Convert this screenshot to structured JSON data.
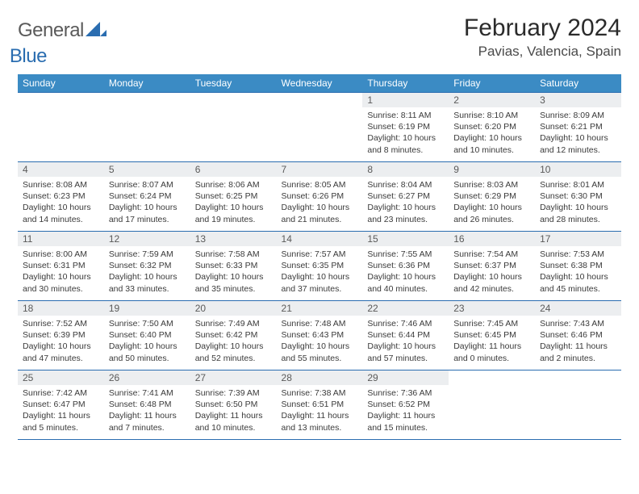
{
  "logo": {
    "text1": "General",
    "text2": "Blue"
  },
  "title": "February 2024",
  "location": "Pavias, Valencia, Spain",
  "colors": {
    "header_bg": "#3b8bc4",
    "header_fg": "#ffffff",
    "row_border": "#2a6db0",
    "daynum_bg": "#eceef0",
    "logo_blue": "#2a6db0"
  },
  "daysOfWeek": [
    "Sunday",
    "Monday",
    "Tuesday",
    "Wednesday",
    "Thursday",
    "Friday",
    "Saturday"
  ],
  "weeks": [
    [
      null,
      null,
      null,
      null,
      {
        "n": "1",
        "sr": "8:11 AM",
        "ss": "6:19 PM",
        "dl": "10 hours and 8 minutes."
      },
      {
        "n": "2",
        "sr": "8:10 AM",
        "ss": "6:20 PM",
        "dl": "10 hours and 10 minutes."
      },
      {
        "n": "3",
        "sr": "8:09 AM",
        "ss": "6:21 PM",
        "dl": "10 hours and 12 minutes."
      }
    ],
    [
      {
        "n": "4",
        "sr": "8:08 AM",
        "ss": "6:23 PM",
        "dl": "10 hours and 14 minutes."
      },
      {
        "n": "5",
        "sr": "8:07 AM",
        "ss": "6:24 PM",
        "dl": "10 hours and 17 minutes."
      },
      {
        "n": "6",
        "sr": "8:06 AM",
        "ss": "6:25 PM",
        "dl": "10 hours and 19 minutes."
      },
      {
        "n": "7",
        "sr": "8:05 AM",
        "ss": "6:26 PM",
        "dl": "10 hours and 21 minutes."
      },
      {
        "n": "8",
        "sr": "8:04 AM",
        "ss": "6:27 PM",
        "dl": "10 hours and 23 minutes."
      },
      {
        "n": "9",
        "sr": "8:03 AM",
        "ss": "6:29 PM",
        "dl": "10 hours and 26 minutes."
      },
      {
        "n": "10",
        "sr": "8:01 AM",
        "ss": "6:30 PM",
        "dl": "10 hours and 28 minutes."
      }
    ],
    [
      {
        "n": "11",
        "sr": "8:00 AM",
        "ss": "6:31 PM",
        "dl": "10 hours and 30 minutes."
      },
      {
        "n": "12",
        "sr": "7:59 AM",
        "ss": "6:32 PM",
        "dl": "10 hours and 33 minutes."
      },
      {
        "n": "13",
        "sr": "7:58 AM",
        "ss": "6:33 PM",
        "dl": "10 hours and 35 minutes."
      },
      {
        "n": "14",
        "sr": "7:57 AM",
        "ss": "6:35 PM",
        "dl": "10 hours and 37 minutes."
      },
      {
        "n": "15",
        "sr": "7:55 AM",
        "ss": "6:36 PM",
        "dl": "10 hours and 40 minutes."
      },
      {
        "n": "16",
        "sr": "7:54 AM",
        "ss": "6:37 PM",
        "dl": "10 hours and 42 minutes."
      },
      {
        "n": "17",
        "sr": "7:53 AM",
        "ss": "6:38 PM",
        "dl": "10 hours and 45 minutes."
      }
    ],
    [
      {
        "n": "18",
        "sr": "7:52 AM",
        "ss": "6:39 PM",
        "dl": "10 hours and 47 minutes."
      },
      {
        "n": "19",
        "sr": "7:50 AM",
        "ss": "6:40 PM",
        "dl": "10 hours and 50 minutes."
      },
      {
        "n": "20",
        "sr": "7:49 AM",
        "ss": "6:42 PM",
        "dl": "10 hours and 52 minutes."
      },
      {
        "n": "21",
        "sr": "7:48 AM",
        "ss": "6:43 PM",
        "dl": "10 hours and 55 minutes."
      },
      {
        "n": "22",
        "sr": "7:46 AM",
        "ss": "6:44 PM",
        "dl": "10 hours and 57 minutes."
      },
      {
        "n": "23",
        "sr": "7:45 AM",
        "ss": "6:45 PM",
        "dl": "11 hours and 0 minutes."
      },
      {
        "n": "24",
        "sr": "7:43 AM",
        "ss": "6:46 PM",
        "dl": "11 hours and 2 minutes."
      }
    ],
    [
      {
        "n": "25",
        "sr": "7:42 AM",
        "ss": "6:47 PM",
        "dl": "11 hours and 5 minutes."
      },
      {
        "n": "26",
        "sr": "7:41 AM",
        "ss": "6:48 PM",
        "dl": "11 hours and 7 minutes."
      },
      {
        "n": "27",
        "sr": "7:39 AM",
        "ss": "6:50 PM",
        "dl": "11 hours and 10 minutes."
      },
      {
        "n": "28",
        "sr": "7:38 AM",
        "ss": "6:51 PM",
        "dl": "11 hours and 13 minutes."
      },
      {
        "n": "29",
        "sr": "7:36 AM",
        "ss": "6:52 PM",
        "dl": "11 hours and 15 minutes."
      },
      null,
      null
    ]
  ],
  "labels": {
    "sunrise": "Sunrise:",
    "sunset": "Sunset:",
    "daylight": "Daylight:"
  }
}
